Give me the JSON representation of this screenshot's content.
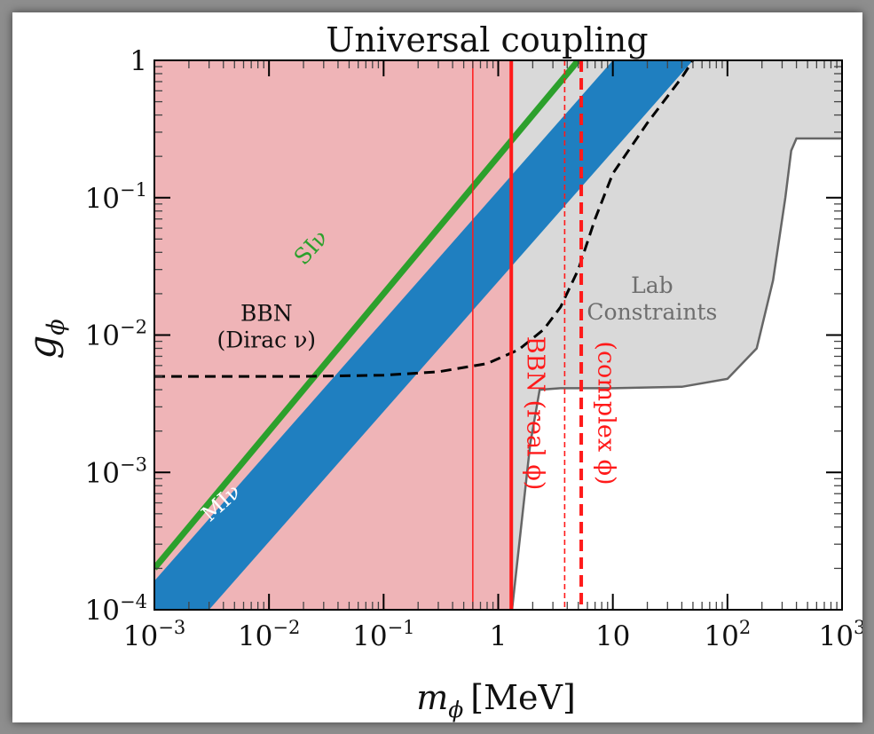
{
  "chart_data": {
    "type": "area",
    "title": "Universal coupling",
    "xlabel_main": "m",
    "xlabel_sub": "ϕ",
    "xlabel_unit": "[MeV]",
    "ylabel_main": "g",
    "ylabel_sub": "ϕ",
    "x_scale": "log",
    "y_scale": "log",
    "xlim": [
      0.001,
      1000
    ],
    "ylim": [
      0.0001,
      1
    ],
    "x_ticks": [
      {
        "value": 0.001,
        "base": "10",
        "exp": "−3"
      },
      {
        "value": 0.01,
        "base": "10",
        "exp": "−2"
      },
      {
        "value": 0.1,
        "base": "10",
        "exp": "−1"
      },
      {
        "value": 1,
        "base": "1",
        "exp": ""
      },
      {
        "value": 10,
        "base": "10",
        "exp": ""
      },
      {
        "value": 100,
        "base": "10",
        "exp": "2"
      },
      {
        "value": 1000,
        "base": "10",
        "exp": "3"
      }
    ],
    "y_ticks": [
      {
        "value": 1,
        "base": "1",
        "exp": ""
      },
      {
        "value": 0.1,
        "base": "10",
        "exp": "−1"
      },
      {
        "value": 0.01,
        "base": "10",
        "exp": "−2"
      },
      {
        "value": 0.001,
        "base": "10",
        "exp": "−3"
      },
      {
        "value": 0.0001,
        "base": "10",
        "exp": "−4"
      }
    ],
    "regions": [
      {
        "name": "BBN (real ϕ) excluded",
        "color": "#efb4b7",
        "x_range": [
          0.001,
          1.3
        ],
        "y_range": [
          0.0001,
          1
        ]
      },
      {
        "name": "Lab Constraints",
        "color": "#d9d9d9",
        "edge_color": "#666666",
        "label_line1": "Lab",
        "label_line2": "Constraints",
        "label_pos": [
          22,
          0.016
        ],
        "boundary": [
          [
            1.32,
            0.0001
          ],
          [
            1.9,
            0.0016
          ],
          [
            2.3,
            0.004
          ],
          [
            3.5,
            0.0041
          ],
          [
            10,
            0.0041
          ],
          [
            40,
            0.0042
          ],
          [
            100,
            0.0048
          ],
          [
            180,
            0.008
          ],
          [
            250,
            0.025
          ],
          [
            320,
            0.1
          ],
          [
            360,
            0.22
          ],
          [
            400,
            0.27
          ],
          [
            1000,
            0.27
          ]
        ]
      }
    ],
    "bands": [
      {
        "name": "MIν",
        "label": "MIν",
        "color": "#1f7fc0",
        "lower": [
          [
            0.003,
            0.0001
          ],
          [
            50,
            1
          ]
        ],
        "upper": [
          [
            0.0006,
            0.0001
          ],
          [
            10,
            1
          ]
        ],
        "label_pos": [
          0.0042,
          0.00055
        ],
        "label_angle": -42
      }
    ],
    "lines": [
      {
        "name": "SIν",
        "label": "SIν",
        "color": "#2ca02c",
        "style": "solid",
        "points": [
          [
            0.001,
            0.0002
          ],
          [
            5,
            1
          ]
        ],
        "label_pos": [
          0.026,
          0.04
        ],
        "label_angle": -48
      },
      {
        "name": "BBN (Dirac ν)",
        "label_line1": "BBN",
        "label_line2": "(Dirac ν)",
        "color": "#000000",
        "style": "dashed",
        "label_pos": [
          0.0095,
          0.01
        ],
        "points": [
          [
            0.001,
            0.005
          ],
          [
            0.02,
            0.005
          ],
          [
            0.1,
            0.0051
          ],
          [
            0.3,
            0.0054
          ],
          [
            0.8,
            0.0062
          ],
          [
            1.5,
            0.0078
          ],
          [
            2.5,
            0.011
          ],
          [
            3.5,
            0.016
          ],
          [
            5,
            0.03
          ],
          [
            7,
            0.07
          ],
          [
            10,
            0.15
          ],
          [
            20,
            0.35
          ],
          [
            40,
            0.75
          ],
          [
            50,
            1
          ]
        ]
      },
      {
        "name": "BBN (real ϕ)",
        "label": "BBN (real ϕ)",
        "color": "#ff1a1a",
        "style": "vertical-solid",
        "x": 1.3,
        "label_pos": [
          1.8,
          0.0027
        ],
        "label_angle": 90
      },
      {
        "name": "BBN (real ϕ) thin",
        "color": "#ff1a1a",
        "style": "vertical-thin",
        "x": 0.6
      },
      {
        "name": "(complex ϕ)",
        "label": "(complex ϕ)",
        "color": "#ff1a1a",
        "style": "vertical-dashed",
        "x": 5.3,
        "label_pos": [
          7.5,
          0.0027
        ],
        "label_angle": 90
      },
      {
        "name": "(complex ϕ) thin",
        "color": "#ff1a1a",
        "style": "vertical-thin-dashed",
        "x": 3.8
      }
    ]
  }
}
